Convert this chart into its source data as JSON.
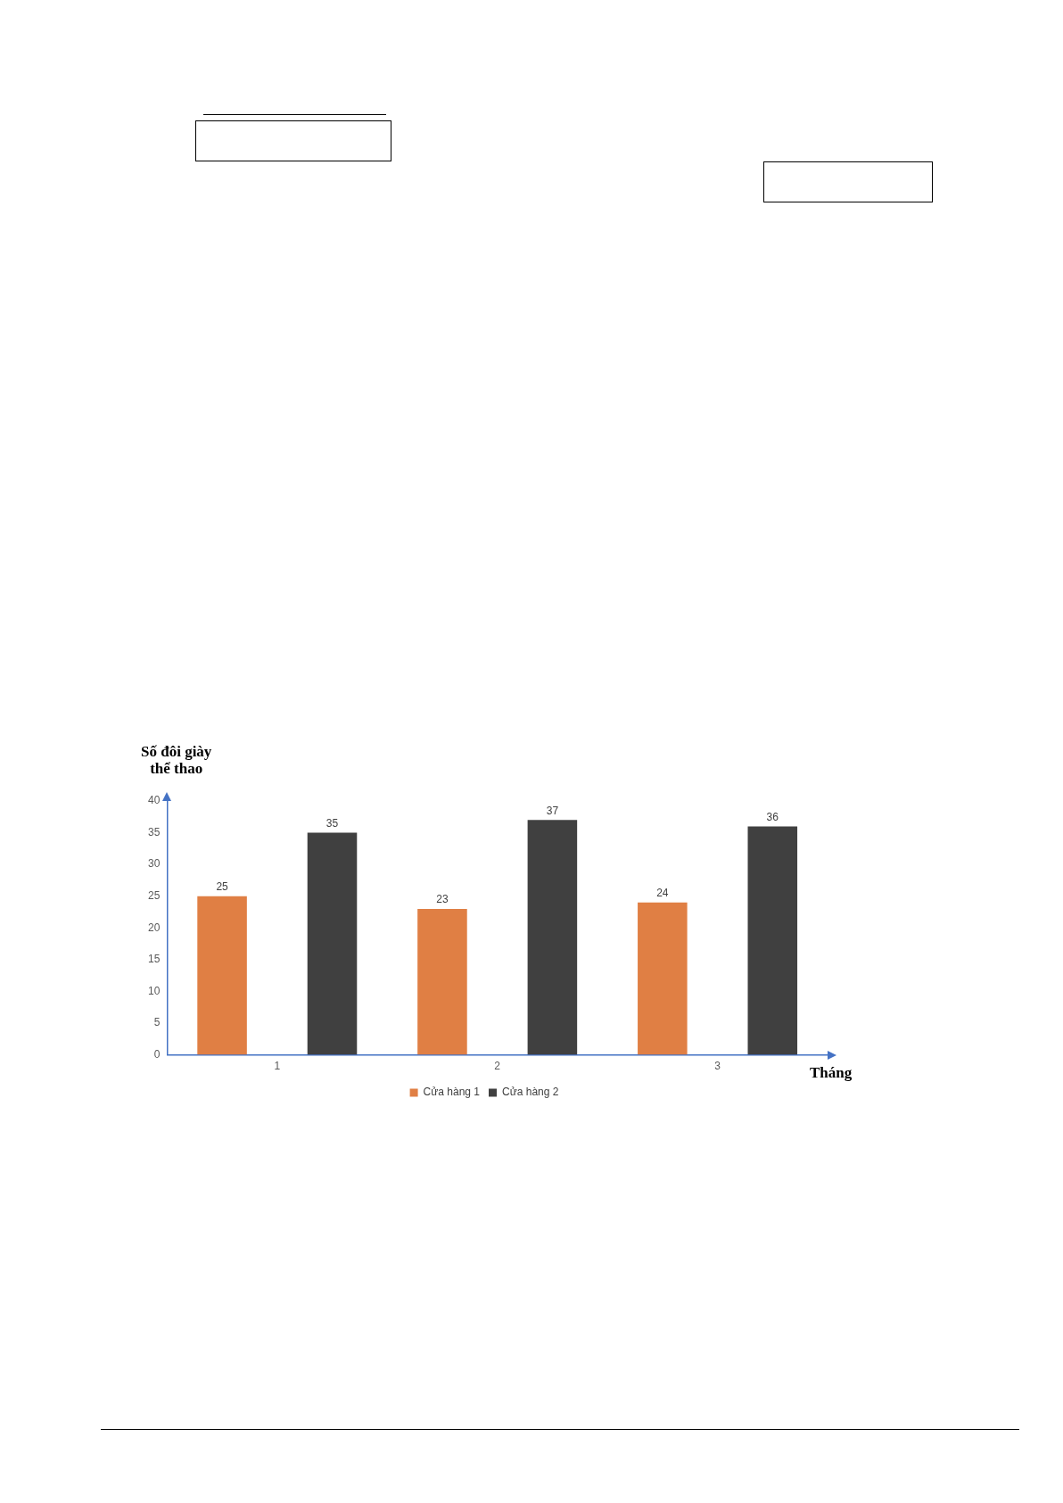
{
  "chart_data": {
    "type": "bar",
    "xlabel": "Tháng",
    "ylabel": "Số đôi giày\nthể thao",
    "categories": [
      "1",
      "2",
      "3"
    ],
    "series": [
      {
        "name": "Cửa hàng 1",
        "color": "#e07f44",
        "values": [
          25,
          23,
          24
        ]
      },
      {
        "name": "Cửa hàng 2",
        "color": "#404040",
        "values": [
          35,
          37,
          36
        ]
      }
    ],
    "ylim": [
      0,
      40
    ],
    "yticks": [
      0,
      5,
      10,
      15,
      20,
      25,
      30,
      35,
      40
    ],
    "grid": false,
    "legend": "bottom",
    "data_labels": true
  }
}
